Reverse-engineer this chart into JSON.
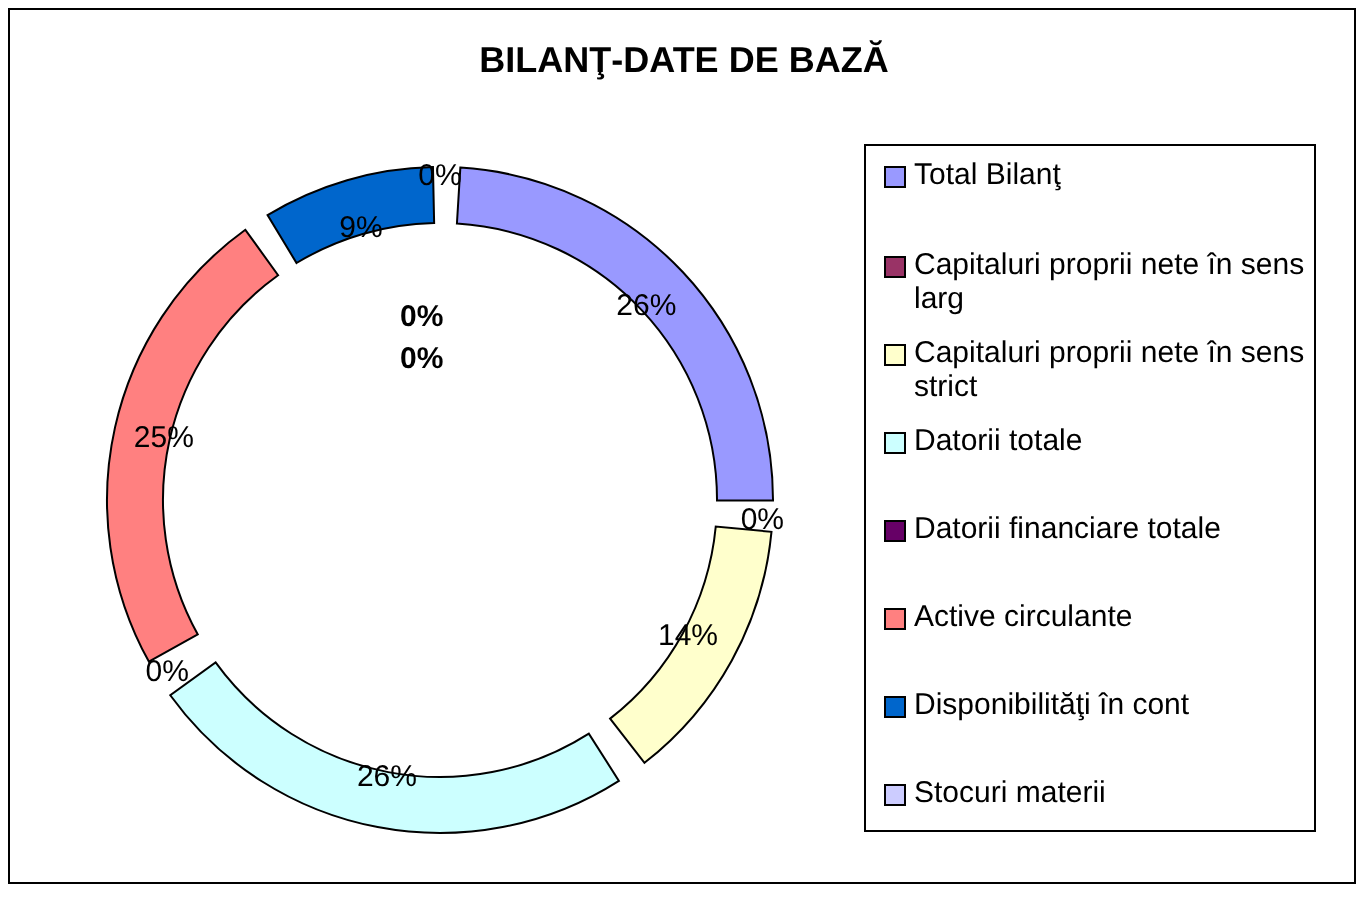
{
  "chart_data": {
    "type": "donut",
    "title": "BILANŢ-DATE DE BAZĂ",
    "categories": [
      "Total Bilanţ",
      "Capitaluri proprii nete în sens larg",
      "Capitaluri proprii nete în sens strict",
      "Datorii totale",
      "Datorii financiare totale",
      "Active circulante",
      "Disponibilităţi în cont",
      "Stocuri materii"
    ],
    "values": [
      26,
      0,
      14,
      26,
      0,
      25,
      9,
      0
    ],
    "value_labels": [
      "26%",
      "0%",
      "14%",
      "26%",
      "0%",
      "25%",
      "9%",
      "0%"
    ],
    "colors": [
      "#9999ff",
      "#993366",
      "#ffffcc",
      "#ccffff",
      "#660066",
      "#ff8080",
      "#0066cc",
      "#ccccff"
    ],
    "annotations": [
      "0%",
      "0%"
    ],
    "legend": "right"
  }
}
